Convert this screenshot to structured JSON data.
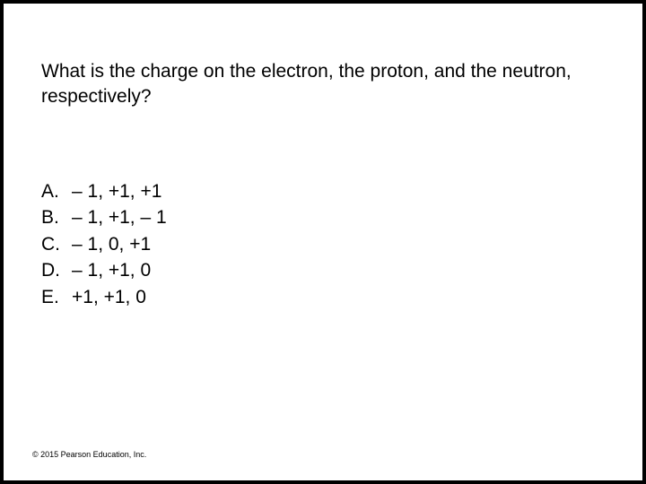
{
  "slide": {
    "background_color": "#ffffff",
    "page_background_color": "#000000",
    "question_text": "What is the charge on the electron, the proton, and the neutron, respectively?",
    "question_fontsize": 21,
    "question_color": "#000000",
    "options": [
      {
        "letter": "A.",
        "text": "– 1, +1, +1"
      },
      {
        "letter": "B.",
        "text": "– 1, +1, – 1"
      },
      {
        "letter": "C.",
        "text": "– 1, 0, +1"
      },
      {
        "letter": "D.",
        "text": "– 1, +1, 0"
      },
      {
        "letter": "E.",
        "text": "+1, +1, 0"
      }
    ],
    "options_fontsize": 21,
    "copyright": "© 2015 Pearson Education, Inc.",
    "copyright_fontsize": 9
  }
}
